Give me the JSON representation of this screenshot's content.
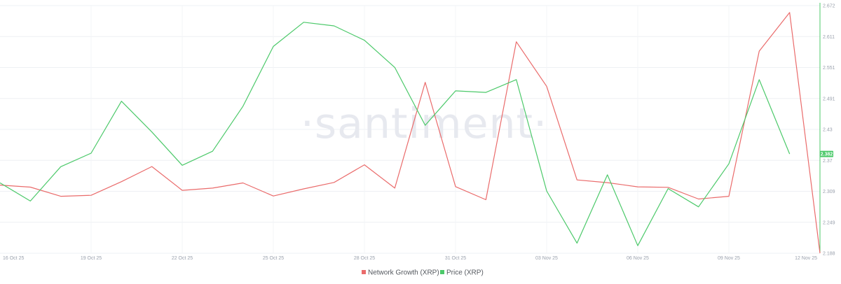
{
  "watermark": "·santiment·",
  "chart_data": {
    "type": "line",
    "x_ticks": [
      "16 Oct 25",
      "19 Oct 25",
      "22 Oct 25",
      "25 Oct 25",
      "28 Oct 25",
      "31 Oct 25",
      "03 Nov 25",
      "06 Nov 25",
      "09 Nov 25",
      "12 Nov 25"
    ],
    "x_count": 28,
    "y_right": {
      "ticks": [
        "2.672",
        "2.611",
        "2.551",
        "2.491",
        "2.43",
        "2.37",
        "2.309",
        "2.249",
        "2.188"
      ],
      "range": [
        2.188,
        2.672
      ]
    },
    "current_price_label": "2.382",
    "current_price_value": 2.382,
    "legend_position": "bottom-center",
    "grid": true,
    "series": [
      {
        "name": "Network Growth (XRP)",
        "color": "#ea6b6b",
        "axis": "hidden",
        "range": [
          0,
          100
        ],
        "values": [
          27.5,
          26.7,
          23.0,
          23.4,
          28.9,
          35.0,
          25.4,
          26.3,
          28.4,
          23.1,
          26.0,
          28.6,
          35.7,
          26.3,
          69.0,
          26.9,
          21.6,
          85.4,
          67.4,
          29.6,
          28.5,
          26.8,
          26.6,
          21.9,
          23.0,
          81.6,
          97.2,
          0.0
        ]
      },
      {
        "name": "Price (XRP)",
        "color": "#4cc96a",
        "axis": "right",
        "values": [
          2.3255,
          2.29,
          2.3571,
          2.3835,
          2.4851,
          2.425,
          2.3598,
          2.3874,
          2.4752,
          2.5921,
          2.6395,
          2.6323,
          2.6042,
          2.5512,
          2.438,
          2.5053,
          2.5023,
          2.5274,
          2.3097,
          2.2077,
          2.3413,
          2.2027,
          2.3143,
          2.2787,
          2.3627,
          2.5272,
          2.382
        ]
      }
    ]
  }
}
